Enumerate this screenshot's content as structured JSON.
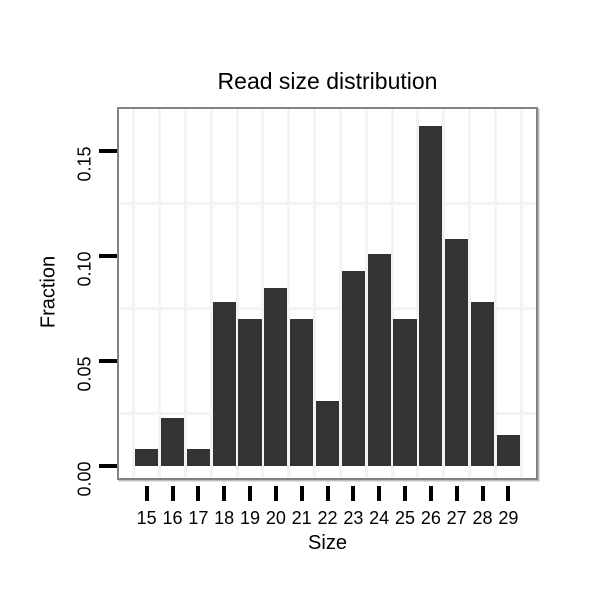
{
  "chart_data": {
    "type": "bar",
    "title": "Read size distribution",
    "xlabel": "Size",
    "ylabel": "Fraction",
    "categories": [
      "15",
      "16",
      "17",
      "18",
      "19",
      "20",
      "21",
      "22",
      "23",
      "24",
      "25",
      "26",
      "27",
      "28",
      "29"
    ],
    "values": [
      0.008,
      0.023,
      0.008,
      0.078,
      0.07,
      0.085,
      0.07,
      0.031,
      0.093,
      0.101,
      0.07,
      0.162,
      0.108,
      0.078,
      0.015
    ],
    "yticks": [
      0,
      0.05,
      0.1,
      0.15
    ],
    "ytick_labels": [
      "0.00",
      "0.05",
      "0.10",
      "0.15"
    ],
    "ylim": [
      -0.006,
      0.172
    ],
    "grid": {
      "h_minor_values": [
        0.025,
        0.075,
        0.125
      ],
      "v_at_category_boundaries": true,
      "visible": true
    },
    "legend": "none",
    "colors": {
      "bar": "#333333",
      "panel_border": "#828282",
      "grid": "#f3f3f3",
      "tick": "#000000",
      "text": "#000000",
      "background": "#ffffff"
    }
  }
}
